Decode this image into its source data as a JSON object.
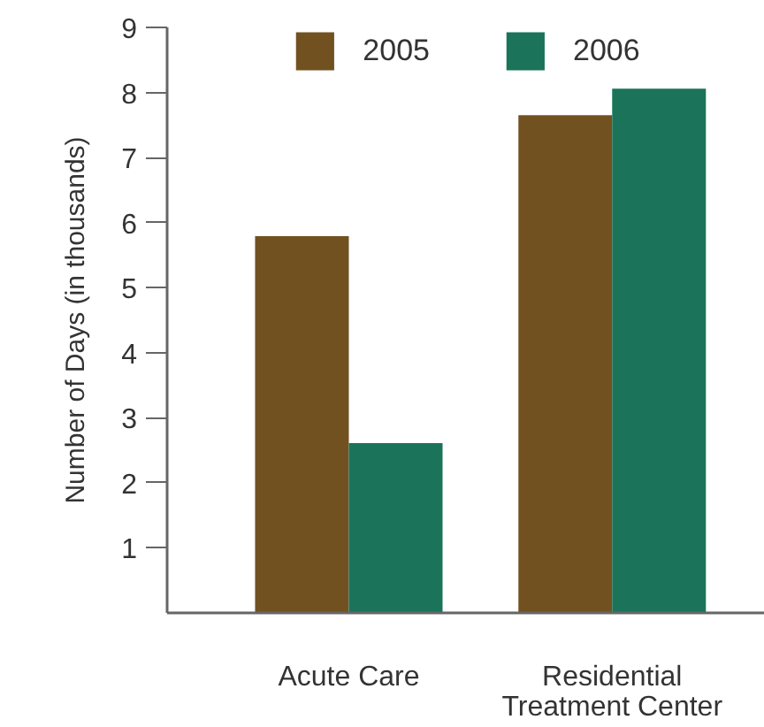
{
  "chart_data": {
    "type": "bar",
    "ylabel": "Number of Days (in thousands)",
    "categories": [
      "Acute Care",
      "Residential\nTreatment Center"
    ],
    "series": [
      {
        "name": "2005",
        "color": "#725121",
        "values": [
          5.79,
          7.65
        ]
      },
      {
        "name": "2006",
        "color": "#1b735a",
        "values": [
          2.61,
          8.06
        ]
      }
    ],
    "ylim": [
      0,
      9
    ],
    "yticks": [
      1,
      2,
      3,
      4,
      5,
      6,
      7,
      8,
      9
    ],
    "grid": false,
    "legend": "top"
  }
}
